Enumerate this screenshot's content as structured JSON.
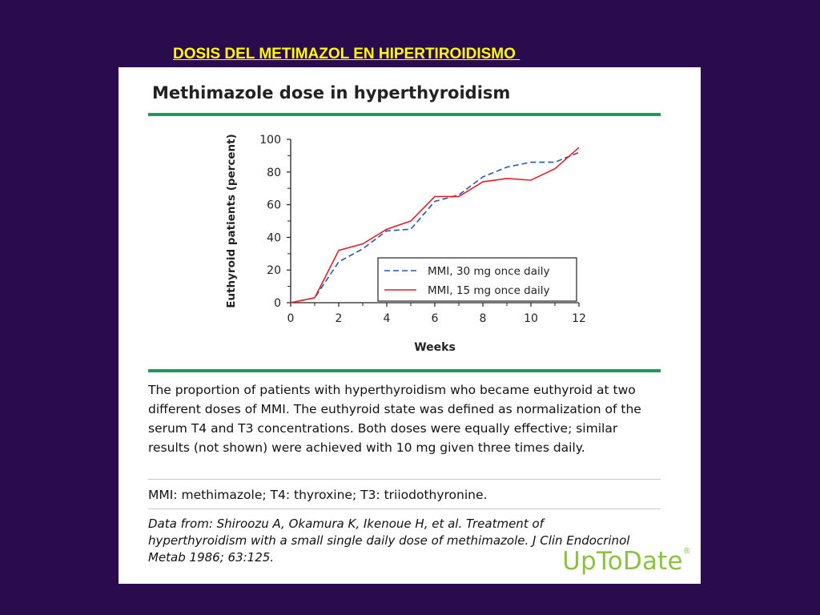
{
  "slide_title": "DOSIS DEL METIMAZOL EN HIPERTIROIDISMO ",
  "figure": {
    "title": "Methimazole dose in hyperthyroidism",
    "caption": "The proportion of patients with hyperthyroidism who became euthyroid at two different doses of MMI. The euthyroid state was defined as normalization of the serum T4 and T3 concentrations. Both doses were equally effective; similar results (not shown) were achieved with 10 mg given three times daily.",
    "abbreviations": "MMI: methimazole; T4: thyroxine; T3: triiodothyronine.",
    "source": "Data from: Shiroozu A, Okamura K, Ikenoue H, et al. Treatment of hyperthyroidism with a small single daily dose of methimazole. J Clin Endocrinol Metab 1986; 63:125.",
    "logo": "UpToDate",
    "logo_mark": "®"
  },
  "chart_data": {
    "type": "line",
    "title": "",
    "xlabel": "Weeks",
    "ylabel": "Euthyroid patients (percent)",
    "xlim": [
      0,
      12
    ],
    "ylim": [
      0,
      100
    ],
    "xticks": [
      0,
      2,
      4,
      6,
      8,
      10,
      12
    ],
    "yticks": [
      0,
      20,
      40,
      60,
      80,
      100
    ],
    "grid": false,
    "legend_position": "bottom-right",
    "x": [
      0,
      1,
      2,
      3,
      4,
      5,
      6,
      7,
      8,
      9,
      10,
      11,
      12
    ],
    "series": [
      {
        "name": "MMI, 30 mg once daily",
        "color": "#2457b8",
        "style": "dashed",
        "values": [
          0,
          3,
          25,
          33,
          44,
          45,
          62,
          66,
          77,
          83,
          86,
          86,
          92
        ]
      },
      {
        "name": "MMI, 15 mg once daily",
        "color": "#e0202a",
        "style": "solid",
        "values": [
          0,
          3,
          32,
          36,
          45,
          50,
          65,
          65,
          74,
          76,
          75,
          82,
          95
        ]
      }
    ]
  }
}
